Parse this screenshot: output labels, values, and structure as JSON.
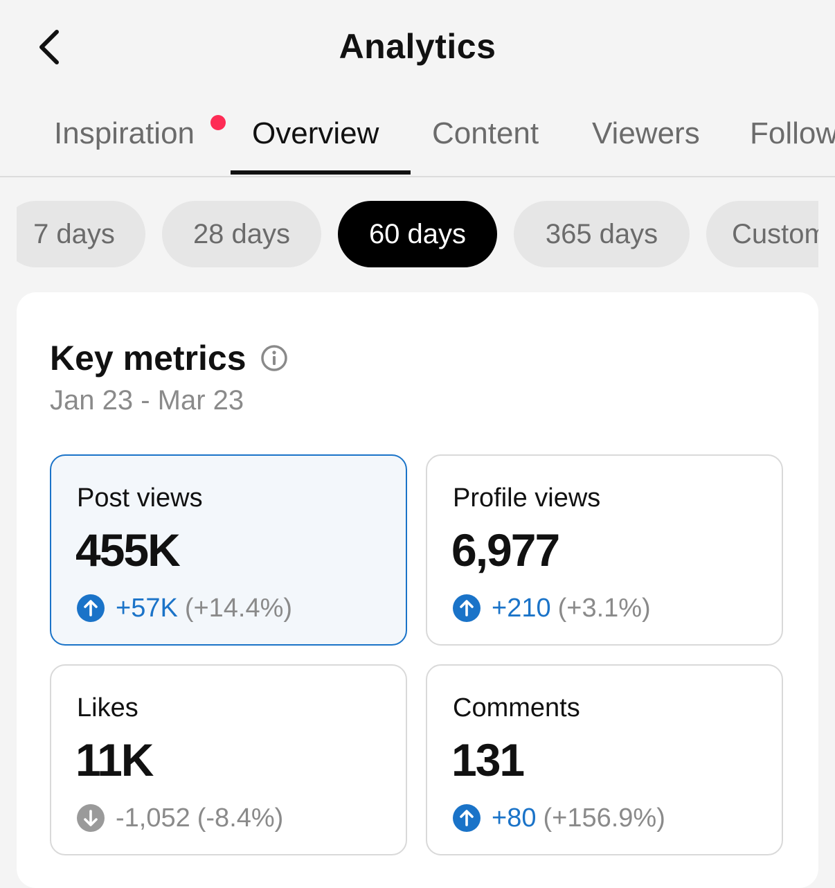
{
  "header": {
    "title": "Analytics",
    "back_icon": "chevron-left-icon"
  },
  "tabs": [
    {
      "label": "Inspiration",
      "active": false,
      "has_notification": true
    },
    {
      "label": "Overview",
      "active": true
    },
    {
      "label": "Content",
      "active": false
    },
    {
      "label": "Viewers",
      "active": false
    },
    {
      "label": "Followers",
      "active": false
    }
  ],
  "date_chips": [
    {
      "label": "7 days",
      "active": false
    },
    {
      "label": "28 days",
      "active": false
    },
    {
      "label": "60 days",
      "active": true
    },
    {
      "label": "365 days",
      "active": false
    },
    {
      "label": "Custom",
      "active": false
    }
  ],
  "key_metrics": {
    "title": "Key metrics",
    "info_icon": "info-icon",
    "date_range": "Jan 23 - Mar 23",
    "metrics": [
      {
        "label": "Post views",
        "value": "455K",
        "delta": "+57K",
        "delta_pct": "(+14.4%)",
        "direction": "up",
        "selected": true
      },
      {
        "label": "Profile views",
        "value": "6,977",
        "delta": "+210",
        "delta_pct": "(+3.1%)",
        "direction": "up",
        "selected": false
      },
      {
        "label": "Likes",
        "value": "11K",
        "delta": "-1,052",
        "delta_pct": "(-8.4%)",
        "direction": "down",
        "selected": false
      },
      {
        "label": "Comments",
        "value": "131",
        "delta": "+80",
        "delta_pct": "(+156.9%)",
        "direction": "up",
        "selected": false
      }
    ]
  },
  "colors": {
    "accent_blue": "#1a73c8",
    "notification_red": "#fe2c55",
    "active_chip": "#000000",
    "muted_text": "#8a8a8a"
  }
}
